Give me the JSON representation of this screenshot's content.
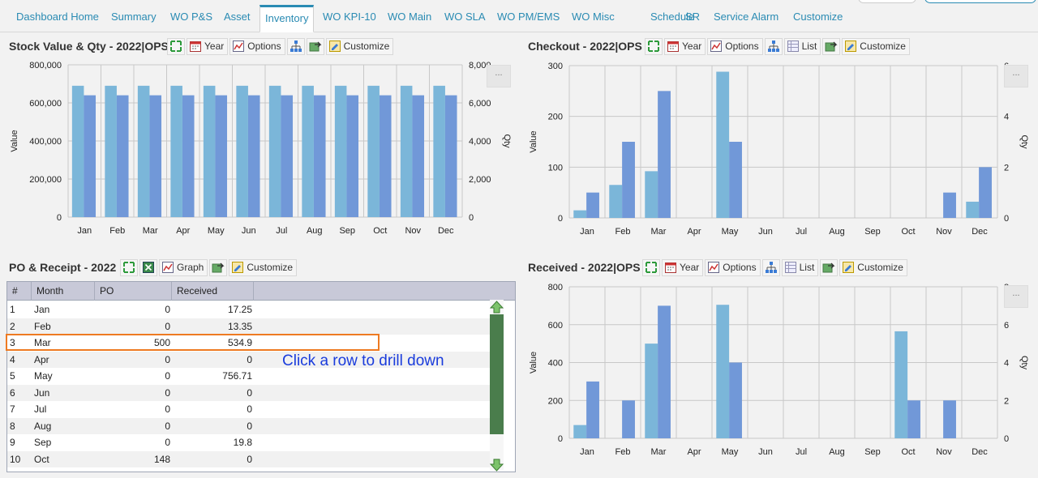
{
  "tabs": [
    {
      "label": "Dashboard Home"
    },
    {
      "label": "Summary"
    },
    {
      "label": "WO P&S"
    },
    {
      "label": "Asset"
    },
    {
      "label": "Inventory"
    },
    {
      "label": "WO KPI-10"
    },
    {
      "label": "WO Main"
    },
    {
      "label": "WO SLA"
    },
    {
      "label": "WO PM/EMS"
    },
    {
      "label": "WO Misc"
    },
    {
      "label": "Schedule"
    },
    {
      "label": "SR"
    },
    {
      "label": "Service Alarm"
    },
    {
      "label": "Customize"
    }
  ],
  "active_tab": "Inventory",
  "panels": {
    "stock": {
      "title": "Stock Value & Qty - 2022|OPS",
      "year": "Year",
      "options": "Options",
      "customize": "Customize",
      "more": "..."
    },
    "checkout": {
      "title": "Checkout - 2022|OPS",
      "year": "Year",
      "options": "Options",
      "list": "List",
      "customize": "Customize",
      "more": "..."
    },
    "po": {
      "title": "PO & Receipt - 2022",
      "graph": "Graph",
      "customize": "Customize"
    },
    "received": {
      "title": "Received - 2022|OPS",
      "year": "Year",
      "options": "Options",
      "list": "List",
      "customize": "Customize",
      "more": "..."
    }
  },
  "colors": {
    "value_bar": "#7bb6d9",
    "qty_bar": "#7198d8",
    "accent": "#2a8bb3",
    "highlight": "#ee7a22",
    "scroll": "#4a7d4c",
    "drill_text": "#1a3cdc"
  },
  "chart_data": [
    {
      "type": "bar",
      "title": "Stock Value & Qty - 2022|OPS",
      "categories": [
        "Jan",
        "Feb",
        "Mar",
        "Apr",
        "May",
        "Jun",
        "Jul",
        "Aug",
        "Sep",
        "Oct",
        "Nov",
        "Dec"
      ],
      "ylabel": "Value",
      "y2label": "Qty",
      "ylim": [
        0,
        800000
      ],
      "y2lim": [
        0,
        8000
      ],
      "yticks": [
        "800,000",
        "600,000",
        "400,000",
        "200,000",
        "0"
      ],
      "y2ticks": [
        "8,000",
        "6,000",
        "4,000",
        "2,000",
        "0"
      ],
      "series": [
        {
          "values": [
            690000,
            690000,
            690000,
            690000,
            690000,
            690000,
            690000,
            690000,
            690000,
            690000,
            690000,
            690000
          ],
          "axis": "left"
        },
        {
          "values": [
            6400,
            6400,
            6400,
            6400,
            6400,
            6400,
            6400,
            6400,
            6400,
            6400,
            6400,
            6400
          ],
          "axis": "right"
        }
      ],
      "grid": true
    },
    {
      "type": "bar",
      "title": "Checkout - 2022|OPS",
      "categories": [
        "Jan",
        "Feb",
        "Mar",
        "Apr",
        "May",
        "Jun",
        "Jul",
        "Aug",
        "Sep",
        "Oct",
        "Nov",
        "Dec"
      ],
      "ylabel": "Value",
      "y2label": "Qty",
      "ylim": [
        0,
        300
      ],
      "y2lim": [
        0,
        6
      ],
      "yticks": [
        "300",
        "200",
        "100",
        "0"
      ],
      "y2ticks": [
        "6",
        "4",
        "2",
        "0"
      ],
      "series": [
        {
          "values": [
            15,
            65,
            92,
            0,
            288,
            0,
            0,
            0,
            0,
            0,
            0,
            32
          ],
          "axis": "left"
        },
        {
          "values": [
            1,
            3,
            5,
            0,
            3,
            0,
            0,
            0,
            0,
            0,
            1,
            2
          ],
          "axis": "right"
        }
      ],
      "grid": true
    },
    {
      "type": "bar",
      "title": "Received - 2022|OPS",
      "categories": [
        "Jan",
        "Feb",
        "Mar",
        "Apr",
        "May",
        "Jun",
        "Jul",
        "Aug",
        "Sep",
        "Oct",
        "Nov",
        "Dec"
      ],
      "ylabel": "Value",
      "y2label": "Qty",
      "ylim": [
        0,
        800
      ],
      "y2lim": [
        0,
        8
      ],
      "yticks": [
        "800",
        "600",
        "400",
        "200",
        "0"
      ],
      "y2ticks": [
        "8",
        "6",
        "4",
        "2",
        "0"
      ],
      "series": [
        {
          "values": [
            70,
            0,
            500,
            0,
            705,
            0,
            0,
            0,
            0,
            565,
            0,
            0
          ],
          "axis": "left"
        },
        {
          "values": [
            3,
            2,
            7,
            0,
            4,
            0,
            0,
            0,
            0,
            2,
            2,
            0
          ],
          "axis": "right"
        }
      ],
      "grid": true
    }
  ],
  "table": {
    "headers": [
      "#",
      "Month",
      "PO",
      "Received"
    ],
    "rows": [
      [
        "1",
        "Jan",
        "0",
        "17.25"
      ],
      [
        "2",
        "Feb",
        "0",
        "13.35"
      ],
      [
        "3",
        "Mar",
        "500",
        "534.9"
      ],
      [
        "4",
        "Apr",
        "0",
        "0"
      ],
      [
        "5",
        "May",
        "0",
        "756.71"
      ],
      [
        "6",
        "Jun",
        "0",
        "0"
      ],
      [
        "7",
        "Jul",
        "0",
        "0"
      ],
      [
        "8",
        "Aug",
        "0",
        "0"
      ],
      [
        "9",
        "Sep",
        "0",
        "19.8"
      ],
      [
        "10",
        "Oct",
        "148",
        "0"
      ]
    ],
    "selected_row": 3
  },
  "annotation": "Click a row to drill down"
}
